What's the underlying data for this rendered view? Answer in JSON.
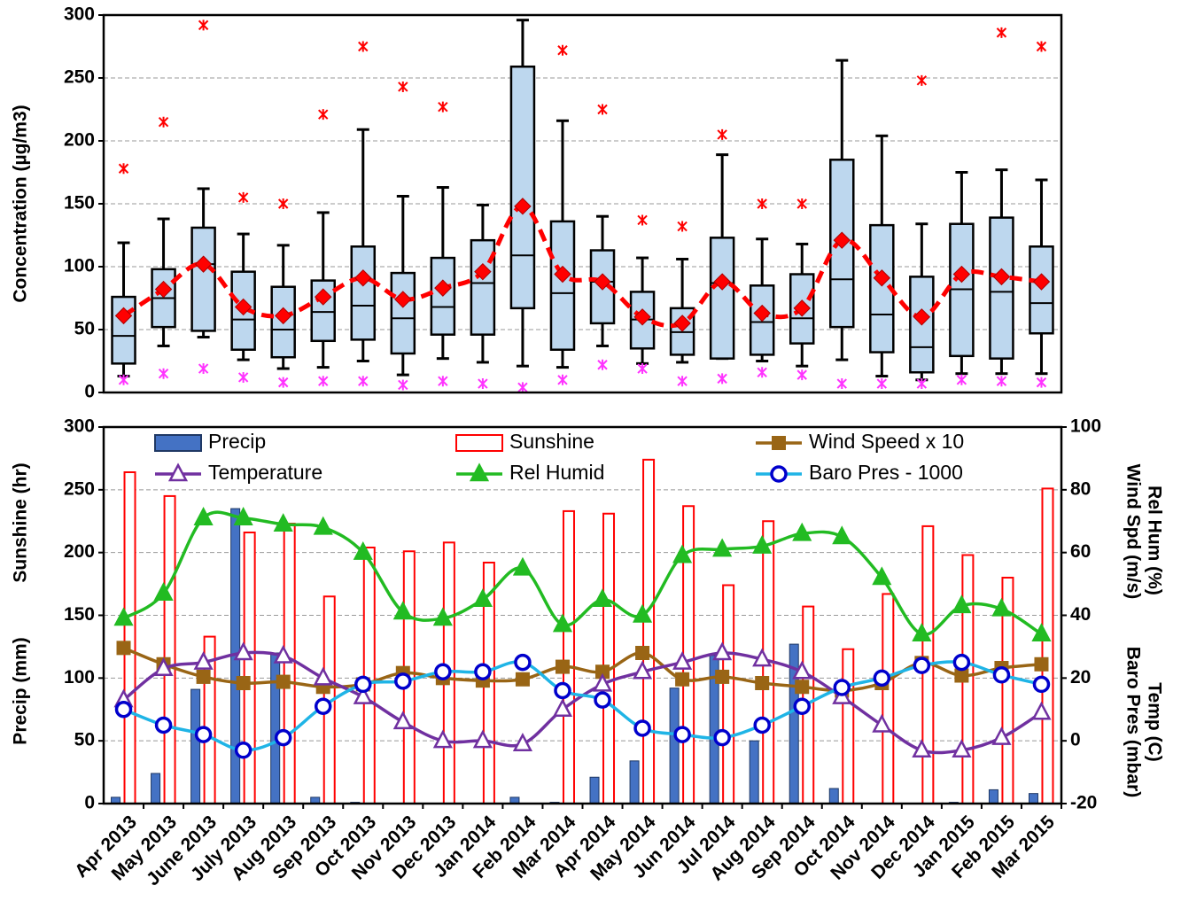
{
  "chart_data": [
    {
      "type": "box",
      "y_label": "Concentration (µg/m3)",
      "ylim": [
        0,
        300
      ],
      "yticks": [
        0,
        50,
        100,
        150,
        200,
        250,
        300
      ],
      "grid": true,
      "box_color": "#bdd7ee",
      "mean_color": "#ff0000",
      "outlier_high_color": "#ff0000",
      "outlier_low_color": "#ff33ff",
      "min": [
        13,
        37,
        44,
        26,
        19,
        20,
        25,
        14,
        27,
        24,
        21,
        20,
        37,
        23,
        24,
        27,
        25,
        21,
        26,
        13,
        10,
        15,
        15,
        15
      ],
      "q1": [
        23,
        52,
        49,
        34,
        28,
        41,
        42,
        31,
        46,
        46,
        67,
        34,
        55,
        35,
        30,
        27,
        30,
        39,
        52,
        32,
        16,
        29,
        27,
        47
      ],
      "median": [
        45,
        75,
        102,
        58,
        50,
        64,
        69,
        59,
        68,
        87,
        109,
        79,
        88,
        58,
        48,
        87,
        56,
        59,
        90,
        62,
        36,
        82,
        80,
        71
      ],
      "q3": [
        76,
        98,
        131,
        96,
        84,
        89,
        116,
        95,
        107,
        121,
        259,
        136,
        113,
        80,
        67,
        123,
        85,
        94,
        185,
        133,
        92,
        134,
        139,
        116
      ],
      "max": [
        119,
        138,
        162,
        126,
        117,
        143,
        209,
        156,
        163,
        149,
        296,
        216,
        140,
        107,
        106,
        189,
        122,
        118,
        264,
        204,
        134,
        175,
        177,
        169
      ],
      "mean": [
        61,
        82,
        102,
        68,
        61,
        76,
        91,
        74,
        83,
        96,
        148,
        94,
        88,
        60,
        55,
        88,
        63,
        67,
        121,
        91,
        60,
        94,
        92,
        88
      ],
      "outliers_high": [
        178,
        215,
        292,
        155,
        150,
        221,
        275,
        243,
        227,
        null,
        null,
        272,
        225,
        137,
        132,
        205,
        150,
        150,
        null,
        null,
        248,
        null,
        286,
        275
      ],
      "outliers_low": [
        10,
        15,
        19,
        12,
        8,
        9,
        9,
        6,
        9,
        7,
        4,
        10,
        22,
        19,
        9,
        11,
        16,
        14,
        7,
        7,
        7,
        10,
        9,
        8
      ]
    },
    {
      "type": "combo",
      "categories": [
        "Apr 2013",
        "May 2013",
        "June 2013",
        "July 2013",
        "Aug 2013",
        "Sep 2013",
        "Oct 2013",
        "Nov 2013",
        "Dec 2013",
        "Jan 2014",
        "Feb 2014",
        "Mar 2014",
        "Apr 2014",
        "May 2014",
        "Jun 2014",
        "Jul 2014",
        "Aug 2014",
        "Sep 2014",
        "Oct 2014",
        "Nov 2014",
        "Dec 2014",
        "Jan 2015",
        "Feb 2015",
        "Mar 2015"
      ],
      "y_labels": [
        "Sunshine (hr)",
        "Precip (mm)"
      ],
      "y2_labels_outer": [
        "Rel Hum (%)",
        "Temp (C)"
      ],
      "y2_labels_inner": [
        "Wind Spd (m/s)",
        "Baro Pres (mbar)"
      ],
      "ylim": [
        0,
        300
      ],
      "yticks": [
        0,
        50,
        100,
        150,
        200,
        250,
        300
      ],
      "y2lim": [
        -20,
        100
      ],
      "y2ticks": [
        -20,
        0,
        20,
        40,
        60,
        80,
        100
      ],
      "grid": true,
      "series": [
        {
          "name": "Precip",
          "kind": "bar",
          "color": "#4472c4",
          "axis": "y",
          "values": [
            5,
            24,
            91,
            235,
            120,
            5,
            1,
            0,
            0,
            0,
            5,
            1,
            21,
            34,
            92,
            118,
            50,
            127,
            12,
            0,
            0,
            1,
            11,
            8
          ]
        },
        {
          "name": "Sunshine",
          "kind": "bar",
          "color": "#ff0000",
          "axis": "y",
          "values": [
            264,
            245,
            133,
            216,
            223,
            165,
            204,
            201,
            208,
            192,
            null,
            233,
            231,
            274,
            237,
            174,
            225,
            157,
            123,
            167,
            221,
            198,
            180,
            251
          ]
        },
        {
          "name": "Wind Speed x 10",
          "kind": "line",
          "marker": "square",
          "color": "#996515",
          "axis": "y",
          "values": [
            124,
            111,
            101,
            96,
            97,
            93,
            95,
            104,
            100,
            98,
            99,
            109,
            105,
            120,
            99,
            101,
            96,
            93,
            90,
            96,
            112,
            102,
            108,
            111
          ]
        },
        {
          "name": "Temperature",
          "kind": "line",
          "marker": "triangle-open",
          "color": "#7030a0",
          "axis": "y2",
          "values": [
            13,
            23,
            25,
            28,
            27,
            20,
            14,
            6,
            0,
            0,
            -1,
            10,
            18,
            22,
            25,
            28,
            26,
            22,
            14,
            5,
            -3,
            -3,
            1,
            9
          ]
        },
        {
          "name": "Rel Humid",
          "kind": "line",
          "marker": "triangle",
          "color": "#22bb22",
          "axis": "y2",
          "values": [
            39,
            47,
            71,
            71,
            69,
            68,
            60,
            41,
            39,
            45,
            55,
            37,
            45,
            40,
            59,
            61,
            62,
            66,
            65,
            52,
            34,
            43,
            42,
            34
          ]
        },
        {
          "name": "Baro Pres - 1000",
          "kind": "line",
          "marker": "circle-open",
          "color": "#1fb4e6",
          "marker_color": "#0000cc",
          "axis": "y2",
          "values": [
            10,
            5,
            2,
            -3,
            1,
            11,
            18,
            19,
            22,
            22,
            25,
            16,
            13,
            4,
            2,
            1,
            5,
            11,
            17,
            20,
            24,
            25,
            21,
            18
          ]
        }
      ]
    }
  ]
}
